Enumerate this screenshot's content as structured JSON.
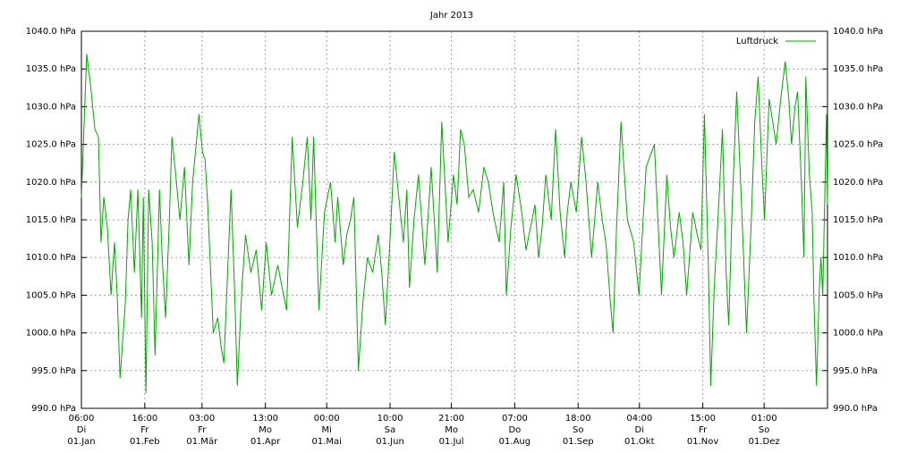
{
  "chart_data": {
    "type": "line",
    "title": "Jahr 2013",
    "x": [
      0,
      2.6,
      4.4,
      6.6,
      8.3,
      9.6,
      11.0,
      12.7,
      14.5,
      16.2,
      17.5,
      18.9,
      21.5,
      22.8,
      24.1,
      25.9,
      27.6,
      29.4,
      30.3,
      31.6,
      32.9,
      34.6,
      36.0,
      38.2,
      39.5,
      41.2,
      43.0,
      44.3,
      46.5,
      48.2,
      50.4,
      52.6,
      54.4,
      57.5,
      59.2,
      60.5,
      61.8,
      64.5,
      66.7,
      68.4,
      69.7,
      71.5,
      73.2,
      75.0,
      76.3,
      78.5,
      80.3,
      82.9,
      85.5,
      88.2,
      90.4,
      93.0,
      96.1,
      98.2,
      100.4,
      103.1,
      105.7,
      108.3,
      110.5,
      112.3,
      113.6,
      116.2,
      118.9,
      121.9,
      124.1,
      125.4,
      128.1,
      129.8,
      131.6,
      133.3,
      135.5,
      137.7,
      139.9,
      142.5,
      145.2,
      146.9,
      148.7,
      150.9,
      153.1,
      155.3,
      157.5,
      159.2,
      160.5,
      162.7,
      164.9,
      168.0,
      169.7,
      171.1,
      174.1,
      176.3,
      179.4,
      182.0,
      183.8,
      185.5,
      187.3,
      189.5,
      191.7,
      194.3,
      196.9,
      199.1,
      201.3,
      204.4,
      206.6,
      207.9,
      210.1,
      212.7,
      215.4,
      217.5,
      219.7,
      221.9,
      223.7,
      225.4,
      227.2,
      229.8,
      232.0,
      234.2,
      236.4,
      237.7,
      239.5,
      242.1,
      244.7,
      246.9,
      249.6,
      252.6,
      254.8,
      256.6,
      258.8,
      260.1,
      261.8,
      264.0,
      267.1,
      270.2,
      272.8,
      274.6,
      276.3,
      280.3,
      282.0,
      283.8,
      286.4,
      288.2,
      289.9,
      292.5,
      294.3,
      296.1,
      299.1,
      301.3,
      303.1,
      304.8,
      306.6,
      307.9,
      309.6,
      311.4,
      313.6,
      315.4,
      316.7,
      318.4,
      320.6,
      322.8,
      325.4,
      327.6,
      329.4,
      331.1,
      332.9,
      334.2,
      336.4,
      338.2,
      339.9,
      342.1,
      344.3,
      346.1,
      347.4,
      349.1,
      350.4,
      352.2,
      353.5,
      354.4,
      356.1,
      357.5,
      358.3,
      359.6,
      361.0,
      361.8,
      362.7,
      364.5,
      365.0
    ],
    "series": [
      {
        "name": "Luftdruck",
        "color": "#00a800",
        "values": [
          1018,
          1037,
          1033,
          1027,
          1026,
          1012,
          1018,
          1014,
          1005,
          1012,
          1005,
          994,
          1004,
          1015,
          1019,
          1008,
          1019,
          1002,
          1018,
          992,
          1019,
          1012,
          997,
          1019,
          1010,
          1002,
          1015,
          1026,
          1020,
          1015,
          1022,
          1009,
          1020,
          1029,
          1024,
          1023,
          1017,
          1000,
          1002,
          998,
          996,
          1008,
          1019,
          1005,
          993,
          1006,
          1013,
          1008,
          1011,
          1003,
          1012,
          1005,
          1009,
          1006,
          1003,
          1026,
          1014,
          1020,
          1026,
          1015,
          1026,
          1003,
          1016,
          1020,
          1012,
          1018,
          1009,
          1013,
          1015,
          1018,
          995,
          1004,
          1010,
          1008,
          1013,
          1008,
          1001,
          1012,
          1024,
          1018,
          1012,
          1019,
          1006,
          1015,
          1021,
          1009,
          1016,
          1022,
          1008,
          1028,
          1012,
          1021,
          1017,
          1027,
          1025,
          1018,
          1019,
          1016,
          1022,
          1020,
          1016,
          1012,
          1020,
          1005,
          1014,
          1021,
          1016,
          1011,
          1014,
          1017,
          1010,
          1014,
          1021,
          1015,
          1027,
          1016,
          1010,
          1016,
          1020,
          1016,
          1026,
          1020,
          1010,
          1020,
          1015,
          1012,
          1004,
          1000,
          1014,
          1028,
          1015,
          1012,
          1005,
          1014,
          1022,
          1025,
          1015,
          1005,
          1021,
          1014,
          1010,
          1016,
          1012,
          1005,
          1016,
          1013,
          1011,
          1029,
          1010,
          993,
          1006,
          1015,
          1027,
          1008,
          1001,
          1017,
          1032,
          1018,
          1000,
          1014,
          1028,
          1034,
          1022,
          1015,
          1031,
          1028,
          1025,
          1031,
          1036,
          1031,
          1025,
          1030,
          1032,
          1020,
          1010,
          1034,
          1021,
          1016,
          1005,
          993,
          1006,
          1010,
          1005,
          1029,
          1017
        ]
      }
    ],
    "xlim": [
      0,
      365
    ],
    "xticks": [
      {
        "value": 0,
        "label": "06:00\nDi\n01.Jan"
      },
      {
        "value": 31,
        "label": "16:00\nFr\n01.Feb"
      },
      {
        "value": 59,
        "label": "03:00\nFr\n01.Mär"
      },
      {
        "value": 90,
        "label": "13:00\nMo\n01.Apr"
      },
      {
        "value": 120,
        "label": "00:00\nMi\n01.Mai"
      },
      {
        "value": 151,
        "label": "10:00\nSa\n01.Jun"
      },
      {
        "value": 181,
        "label": "21:00\nMo\n01.Jul"
      },
      {
        "value": 212,
        "label": "07:00\nDo\n01.Aug"
      },
      {
        "value": 243,
        "label": "18:00\nSo\n01.Sep"
      },
      {
        "value": 273,
        "label": "04:00\nDi\n01.Okt"
      },
      {
        "value": 304,
        "label": "15:00\nFr\n01.Nov"
      },
      {
        "value": 334,
        "label": "01:00\nSo\n01.Dez"
      }
    ],
    "ylim": [
      990,
      1040
    ],
    "yticks": [
      {
        "value": 990,
        "label": "990.0 hPa"
      },
      {
        "value": 995,
        "label": "995.0 hPa"
      },
      {
        "value": 1000,
        "label": "1000.0 hPa"
      },
      {
        "value": 1005,
        "label": "1005.0 hPa"
      },
      {
        "value": 1010,
        "label": "1010.0 hPa"
      },
      {
        "value": 1015,
        "label": "1015.0 hPa"
      },
      {
        "value": 1020,
        "label": "1020.0 hPa"
      },
      {
        "value": 1025,
        "label": "1025.0 hPa"
      },
      {
        "value": 1030,
        "label": "1030.0 hPa"
      },
      {
        "value": 1035,
        "label": "1035.0 hPa"
      },
      {
        "value": 1040,
        "label": "1040.0 hPa"
      }
    ],
    "grid": true,
    "legend": "upper right"
  }
}
